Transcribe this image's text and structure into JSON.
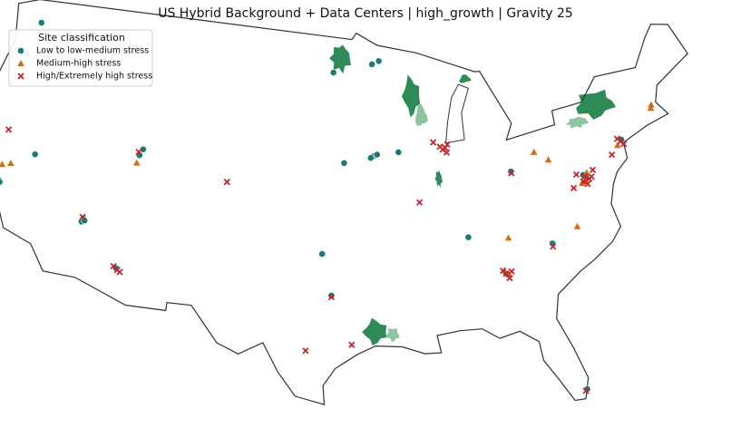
{
  "map": {
    "type": "scatter",
    "title": "US Hybrid Background + Data Centers | high_growth | Gravity 25",
    "legend_title": "Site classification",
    "classes": [
      {
        "name": "Low to low-medium stress",
        "color": "#1b7a74",
        "marker": "circle",
        "sites": [
          [
            -122.3,
            47.6
          ],
          [
            -121.9,
            37.4
          ],
          [
            -122.1,
            37.6
          ],
          [
            -121.8,
            37.3
          ],
          [
            -111.9,
            40.7
          ],
          [
            -111.7,
            41.1
          ],
          [
            -119.8,
            39.5
          ],
          [
            -115.1,
            36.2
          ],
          [
            -115.2,
            36.0
          ],
          [
            -115.0,
            36.1
          ],
          [
            -112.1,
            33.5
          ],
          [
            -96.8,
            46.9
          ],
          [
            -93.5,
            47.4
          ],
          [
            -92.9,
            47.6
          ],
          [
            -93.6,
            41.6
          ],
          [
            -93.8,
            41.5
          ],
          [
            -93.3,
            41.7
          ],
          [
            -95.9,
            41.2
          ],
          [
            -91.6,
            41.8
          ],
          [
            -97.5,
            35.5
          ],
          [
            -96.8,
            32.9
          ],
          [
            -84.4,
            33.7
          ],
          [
            -77.5,
            39.0
          ],
          [
            -77.4,
            38.9
          ],
          [
            -77.6,
            39.1
          ],
          [
            -74.1,
            40.8
          ],
          [
            -80.8,
            35.2
          ],
          [
            -86.8,
            36.2
          ],
          [
            -80.2,
            25.8
          ],
          [
            -83.0,
            40.0
          ]
        ]
      },
      {
        "name": "Medium-high stress",
        "color": "#cf6f1c",
        "marker": "triangle",
        "sites": [
          [
            -122.7,
            45.5
          ],
          [
            -116.2,
            47.7
          ],
          [
            -112.0,
            40.2
          ],
          [
            -122.0,
            38.4
          ],
          [
            -121.4,
            38.6
          ],
          [
            -77.5,
            38.8
          ],
          [
            -77.3,
            39.2
          ],
          [
            -77.8,
            38.6
          ],
          [
            -84.5,
            33.9
          ],
          [
            -84.2,
            33.6
          ],
          [
            -78.8,
            36.0
          ],
          [
            -74.5,
            40.5
          ],
          [
            -71.2,
            42.3
          ],
          [
            -71.1,
            42.5
          ],
          [
            -80.0,
            40.4
          ],
          [
            -81.0,
            41.0
          ],
          [
            -83.9,
            35.9
          ]
        ]
      },
      {
        "name": "High/Extremely high stress",
        "color": "#c3262d",
        "marker": "x",
        "sites": [
          [
            -87.9,
            41.9
          ],
          [
            -88.1,
            41.8
          ],
          [
            -87.7,
            42.1
          ],
          [
            -88.3,
            42.0
          ],
          [
            -87.8,
            41.6
          ],
          [
            -77.5,
            39.0
          ],
          [
            -77.2,
            38.8
          ],
          [
            -77.7,
            38.7
          ],
          [
            -77.0,
            38.9
          ],
          [
            -78.1,
            39.2
          ],
          [
            -77.4,
            38.5
          ],
          [
            -76.8,
            39.3
          ],
          [
            -78.5,
            38.4
          ],
          [
            -74.2,
            40.7
          ],
          [
            -74.4,
            40.9
          ],
          [
            -74.0,
            40.5
          ],
          [
            -75.1,
            40.0
          ],
          [
            -84.4,
            33.7
          ],
          [
            -84.6,
            33.9
          ],
          [
            -84.2,
            33.4
          ],
          [
            -84.0,
            33.8
          ],
          [
            -112.0,
            33.4
          ],
          [
            -111.8,
            33.3
          ],
          [
            -112.3,
            33.6
          ],
          [
            -96.8,
            32.8
          ],
          [
            -98.5,
            29.4
          ],
          [
            -95.4,
            29.8
          ],
          [
            -115.2,
            36.3
          ],
          [
            -104.9,
            39.7
          ],
          [
            -112.0,
            40.9
          ],
          [
            -119.8,
            47.3
          ],
          [
            -122.3,
            40.6
          ],
          [
            -83.0,
            39.9
          ],
          [
            -80.8,
            35.0
          ],
          [
            -80.3,
            25.7
          ],
          [
            -90.2,
            38.6
          ],
          [
            -88.8,
            42.3
          ]
        ]
      }
    ]
  }
}
